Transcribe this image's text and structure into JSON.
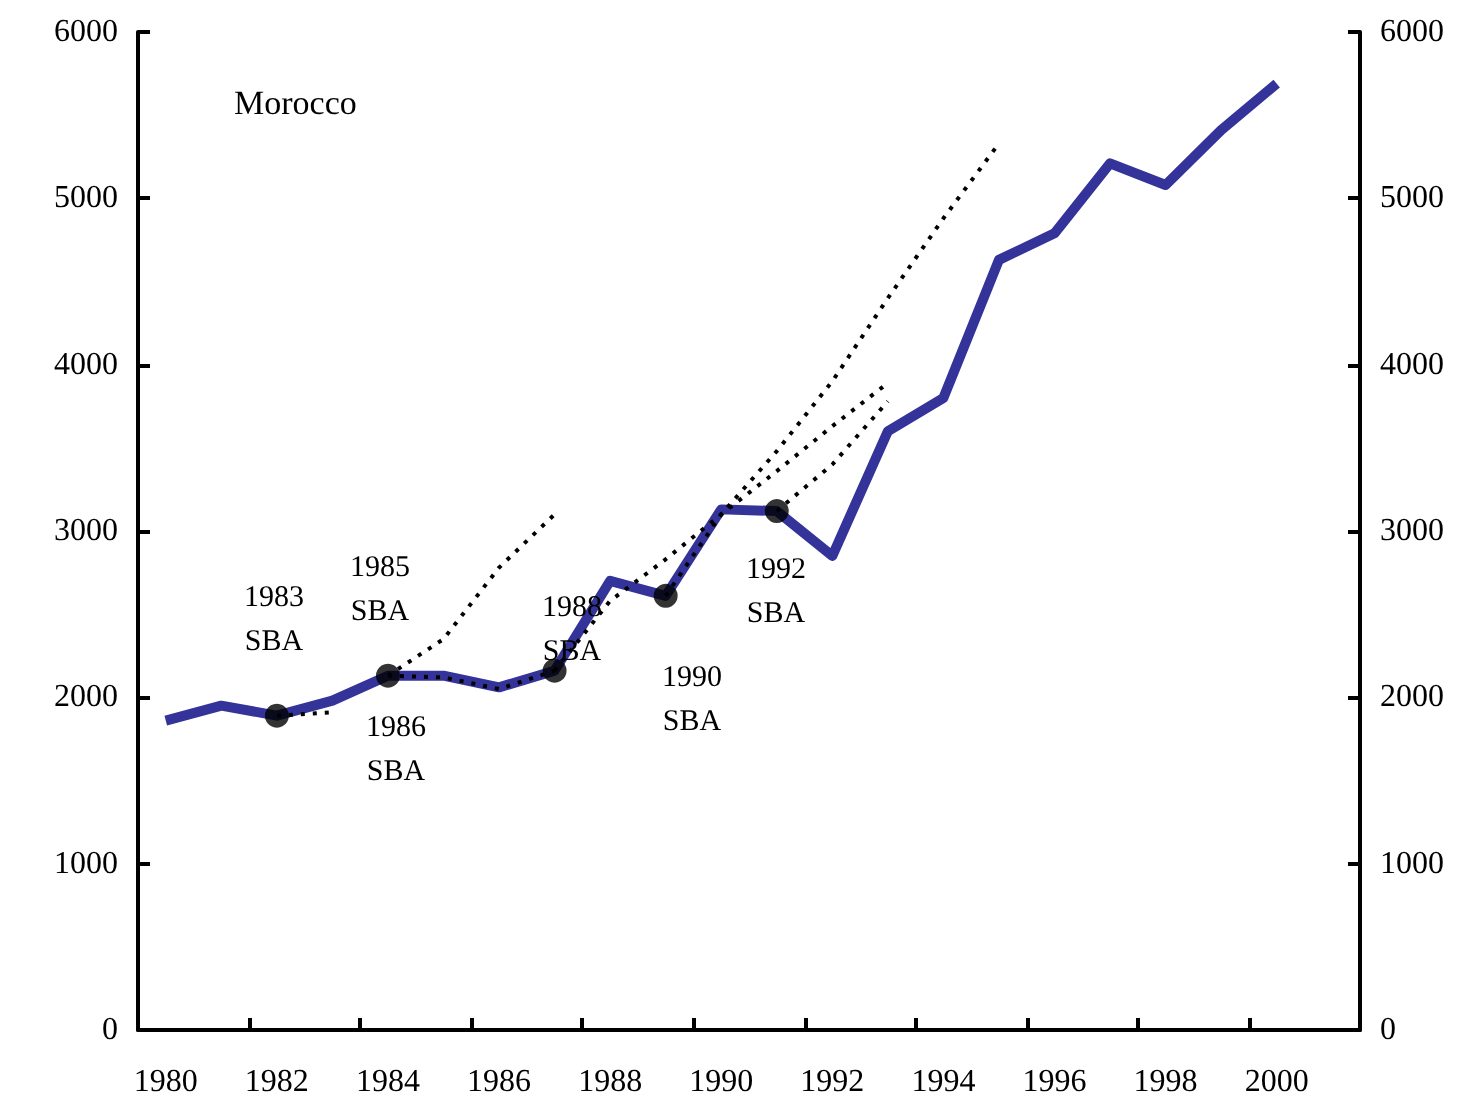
{
  "chart_data": {
    "type": "line",
    "title": "Morocco",
    "xlim": [
      1979.5,
      2001.5
    ],
    "xticks": [
      1980,
      1982,
      1984,
      1986,
      1988,
      1990,
      1992,
      1994,
      1996,
      1998,
      2000,
      {
        "value": 1981.5,
        "label": null
      },
      {
        "value": 1983.5,
        "label": null
      },
      {
        "value": 1985.5,
        "label": null
      },
      {
        "value": 1987.5,
        "label": null
      },
      {
        "value": 1989.5,
        "label": null
      },
      {
        "value": 1991.5,
        "label": null
      },
      {
        "value": 1993.5,
        "label": null
      },
      {
        "value": 1995.5,
        "label": null
      },
      {
        "value": 1997.5,
        "label": null
      },
      {
        "value": 1999.5,
        "label": null
      }
    ],
    "ylim": [
      0,
      6000
    ],
    "yticks": [
      0,
      1000,
      2000,
      3000,
      4000,
      5000,
      6000
    ],
    "y2lim": [
      0,
      6000
    ],
    "y2ticks": [
      0,
      1000,
      2000,
      3000,
      4000,
      5000,
      6000
    ],
    "grid": false,
    "series": [
      {
        "color": "#333399",
        "line_style": "solid",
        "marker": "none",
        "x": [
          1980,
          1981,
          1982,
          1983,
          1984,
          1985,
          1986,
          1987,
          1988,
          1989,
          1990,
          1991,
          1992,
          1993,
          1994,
          1995,
          1996,
          1997,
          1998,
          1999,
          2000
        ],
        "values": [
          1860,
          1950,
          1890,
          1980,
          2130,
          2130,
          2060,
          2160,
          2700,
          2610,
          3130,
          3120,
          2850,
          3600,
          3800,
          4630,
          4790,
          5210,
          5080,
          5410,
          5690
        ]
      },
      {
        "type": "line",
        "color": "#000000",
        "line_style": "dotted",
        "marker": "none",
        "x": [
          1982,
          1983
        ],
        "values": [
          1890,
          1910
        ]
      },
      {
        "type": "line",
        "color": "#000000",
        "line_style": "dotted",
        "marker": "none",
        "x": [
          1984,
          1985,
          1986,
          1987
        ],
        "values": [
          2130,
          2350,
          2780,
          3100
        ]
      },
      {
        "type": "line",
        "color": "#000000",
        "line_style": "dotted",
        "marker": "none",
        "x": [
          1984,
          1985,
          1986,
          1987
        ],
        "values": [
          2130,
          2120,
          2050,
          2160
        ]
      },
      {
        "type": "line",
        "color": "#000000",
        "line_style": "dotted",
        "marker": "none",
        "x": [
          1987,
          1988,
          1989,
          1990,
          1991,
          1992,
          1993
        ],
        "values": [
          2160,
          2580,
          2830,
          3100,
          3360,
          3630,
          3890
        ]
      },
      {
        "type": "line",
        "color": "#000000",
        "line_style": "dotted",
        "marker": "none",
        "x": [
          1989,
          1990,
          1991,
          1992,
          1993,
          1994,
          1995
        ],
        "values": [
          2610,
          3100,
          3480,
          3900,
          4400,
          4880,
          5330
        ]
      },
      {
        "type": "line",
        "color": "#000000",
        "line_style": "dotted",
        "marker": "none",
        "x": [
          1991,
          1992,
          1993
        ],
        "values": [
          3120,
          3400,
          3780
        ]
      },
      {
        "type": "scatter",
        "color": "#000000",
        "marker": "circle",
        "x": [
          1982,
          1984,
          1987,
          1989,
          1991
        ],
        "values": [
          1890,
          2130,
          2160,
          2610,
          3120
        ]
      }
    ],
    "annotations": [
      "1983\nSBA",
      "1985\nSBA",
      "1986\nSBA",
      "1988\nSBA",
      "1990\nSBA",
      "1992\nSBA"
    ]
  }
}
